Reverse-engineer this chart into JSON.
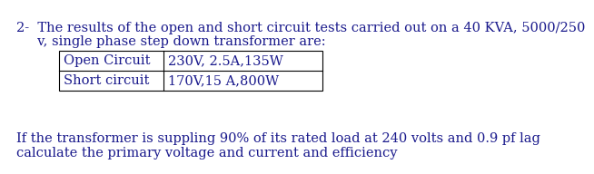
{
  "background_color": "#ffffff",
  "text_color": "#1a1a8c",
  "font_family": "DejaVu Serif",
  "line1": "2-  The results of the open and short circuit tests carried out on a 40 KVA, 5000/250",
  "line2": "     v, single phase step down transformer are:",
  "table_rows": [
    [
      "Open Circuit",
      "230V, 2.5A,135W"
    ],
    [
      "Short circuit",
      "170V,15 A,800W"
    ]
  ],
  "footer_line1": "If the transformer is suppling 90% of its rated load at 240 volts and 0.9 pf lag",
  "footer_line2": "calculate the primary voltage and current and efficiency",
  "fontsize": 10.5,
  "table_fontsize": 10.5
}
